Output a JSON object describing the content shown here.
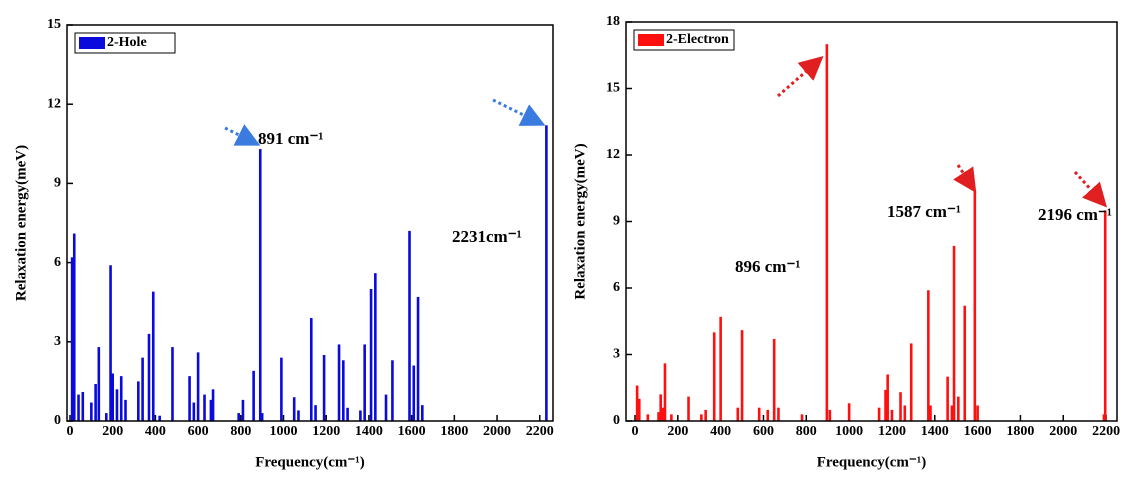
{
  "chart_data": [
    {
      "type": "bar",
      "x_label": "Frequency(cm⁻¹)",
      "y_label": "Relaxation energy(meV)",
      "x": [
        10,
        15,
        20,
        40,
        60,
        100,
        120,
        135,
        170,
        190,
        200,
        220,
        240,
        260,
        320,
        340,
        370,
        390,
        420,
        480,
        560,
        580,
        600,
        630,
        660,
        670,
        790,
        810,
        860,
        891,
        900,
        990,
        1050,
        1070,
        1130,
        1150,
        1190,
        1260,
        1280,
        1300,
        1360,
        1380,
        1410,
        1430,
        1480,
        1510,
        1590,
        1610,
        1630,
        1650,
        2231
      ],
      "series": [
        {
          "name": "2-Hole",
          "color": "#0a0adc",
          "values": [
            6.2,
            3.6,
            7.1,
            1.0,
            1.1,
            0.7,
            1.4,
            2.8,
            0.3,
            5.9,
            1.8,
            1.2,
            1.7,
            0.8,
            1.5,
            2.4,
            3.3,
            4.9,
            0.2,
            2.8,
            1.7,
            0.7,
            2.6,
            1.0,
            0.8,
            1.2,
            0.3,
            0.8,
            1.9,
            10.3,
            0.3,
            2.4,
            0.9,
            0.4,
            3.9,
            0.6,
            2.5,
            2.9,
            2.3,
            0.5,
            0.4,
            2.9,
            5.0,
            5.6,
            1.0,
            2.3,
            7.2,
            2.1,
            4.7,
            0.6,
            11.2
          ]
        }
      ],
      "xlim": [
        -14,
        2262
      ],
      "ylim": [
        0,
        15
      ],
      "xticks": [
        0,
        200,
        400,
        600,
        800,
        1000,
        1200,
        1400,
        1600,
        1800,
        2000,
        2200
      ],
      "yticks": [
        0,
        3,
        6,
        9,
        12,
        15
      ],
      "legend": "upper left",
      "annotations": [
        "891 cm⁻¹",
        "2231cm⁻¹"
      ]
    },
    {
      "type": "bar",
      "x_label": "Frequency(cm⁻¹)",
      "y_label": "Relaxation energy(meV)",
      "x": [
        10,
        20,
        60,
        110,
        120,
        130,
        140,
        170,
        250,
        310,
        330,
        370,
        400,
        480,
        500,
        580,
        620,
        650,
        670,
        780,
        896,
        910,
        1000,
        1140,
        1170,
        1180,
        1200,
        1240,
        1260,
        1290,
        1370,
        1380,
        1460,
        1480,
        1490,
        1510,
        1540,
        1587,
        1600,
        2190,
        2196
      ],
      "series": [
        {
          "name": "2-Electron",
          "color": "#ff1010",
          "values": [
            1.6,
            1.0,
            0.3,
            0.4,
            1.2,
            0.6,
            2.6,
            0.3,
            1.1,
            0.3,
            0.5,
            4.0,
            4.7,
            0.6,
            4.1,
            0.6,
            0.5,
            3.7,
            0.6,
            0.3,
            17.0,
            0.5,
            0.8,
            0.6,
            1.4,
            2.1,
            0.5,
            1.3,
            0.7,
            3.5,
            5.9,
            0.7,
            2.0,
            0.7,
            7.9,
            1.1,
            5.2,
            10.4,
            0.7,
            0.3,
            9.5
          ]
        }
      ],
      "xlim": [
        -42,
        2251
      ],
      "ylim": [
        0,
        18
      ],
      "xticks": [
        0,
        200,
        400,
        600,
        800,
        1000,
        1200,
        1400,
        1600,
        1800,
        2000,
        2200
      ],
      "yticks": [
        0,
        3,
        6,
        9,
        12,
        15,
        18
      ],
      "legend": "upper left",
      "annotations": [
        "896 cm⁻¹",
        "1587 cm⁻¹",
        "2196 cm⁻¹"
      ]
    }
  ]
}
